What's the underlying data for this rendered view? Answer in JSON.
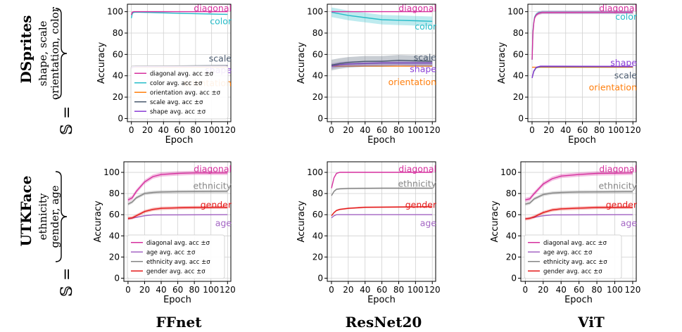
{
  "row_titles": [
    "DSprites",
    "UTKFace"
  ],
  "row_sets": [
    {
      "prefix": "𝕊 =",
      "line1": "shape, scale",
      "line2": "orientation, color"
    },
    {
      "prefix": "𝕊 =",
      "line1": "ethnicity",
      "line2": "gender, age"
    }
  ],
  "column_titles": [
    "FFnet",
    "ResNet20",
    "ViT"
  ],
  "colors": {
    "diagonal": "#d62f9e",
    "color": "#27bcc9",
    "orientation": "#ff7f0e",
    "scale": "#4a5a6e",
    "shape": "#8a3ed6",
    "age": "#a466c4",
    "ethnicity": "#858585",
    "gender": "#e41a1a"
  },
  "chart_data": [
    {
      "type": "line",
      "model": "FFnet",
      "dataset": "DSprites",
      "xlabel": "Epoch",
      "ylabel": "Accuracy",
      "xlim": [
        -5,
        124
      ],
      "ylim": [
        -3,
        107
      ],
      "xticks": [
        0,
        20,
        40,
        60,
        80,
        100,
        120
      ],
      "yticks": [
        0,
        20,
        40,
        60,
        80,
        100
      ],
      "grid": true,
      "legend_position": "lower-left",
      "legend": [
        "diagonal avg. acc ±σ",
        "color avg. acc ±σ",
        "orientation avg. acc ±σ",
        "scale avg. acc ±σ",
        "shape avg. acc ±σ"
      ],
      "series": [
        {
          "key": "orientation",
          "label": "orientation",
          "x": [
            0,
            120
          ],
          "y": [
            48,
            48
          ],
          "band": 0
        },
        {
          "key": "scale",
          "label": "scale",
          "x": [
            0,
            2,
            5,
            10,
            120
          ],
          "y": [
            47,
            48.5,
            49,
            49,
            49.5
          ],
          "band": 0.5
        },
        {
          "key": "shape",
          "label": "shape",
          "x": [
            0,
            2,
            5,
            10,
            120
          ],
          "y": [
            47,
            48,
            48.5,
            48.5,
            49
          ],
          "band": 0.5
        },
        {
          "key": "color",
          "label": "color",
          "x": [
            0,
            1,
            2,
            4,
            10,
            20,
            60,
            120
          ],
          "y": [
            94,
            98,
            99,
            99.5,
            99.5,
            99.3,
            98.5,
            97.5
          ],
          "band": 0.5
        },
        {
          "key": "diagonal",
          "label": "diagonal",
          "x": [
            0,
            1,
            3,
            120
          ],
          "y": [
            97,
            99.5,
            100,
            100
          ],
          "band": 0.3
        }
      ]
    },
    {
      "type": "line",
      "model": "ResNet20",
      "dataset": "DSprites",
      "xlabel": "Epoch",
      "ylabel": "Accuracy",
      "xlim": [
        -5,
        124
      ],
      "ylim": [
        -3,
        107
      ],
      "xticks": [
        0,
        20,
        40,
        60,
        80,
        100,
        120
      ],
      "yticks": [
        0,
        20,
        40,
        60,
        80,
        100
      ],
      "grid": true,
      "legend_position": "none",
      "series": [
        {
          "key": "orientation",
          "label": "orientation",
          "x": [
            0,
            120
          ],
          "y": [
            49,
            49
          ],
          "band": 0
        },
        {
          "key": "shape",
          "label": "shape",
          "x": [
            0,
            10,
            20,
            40,
            60,
            80,
            100,
            120
          ],
          "y": [
            49,
            50.5,
            51,
            51.5,
            52,
            52,
            52,
            52
          ],
          "band": 2.5
        },
        {
          "key": "scale",
          "label": "scale",
          "x": [
            0,
            10,
            20,
            40,
            60,
            80,
            100,
            120
          ],
          "y": [
            50,
            51.5,
            52.5,
            53.5,
            53.5,
            54.5,
            54,
            53.5
          ],
          "band": 5
        },
        {
          "key": "color",
          "label": "color",
          "x": [
            0,
            10,
            20,
            40,
            60,
            80,
            100,
            120
          ],
          "y": [
            99.5,
            98,
            96.5,
            94.5,
            92.5,
            92,
            91.5,
            91
          ],
          "band": 4.5
        },
        {
          "key": "diagonal",
          "label": "diagonal",
          "x": [
            0,
            120
          ],
          "y": [
            100,
            100
          ],
          "band": 0
        }
      ]
    },
    {
      "type": "line",
      "model": "ViT",
      "dataset": "DSprites",
      "xlabel": "Epoch",
      "ylabel": "Accuracy",
      "xlim": [
        -5,
        124
      ],
      "ylim": [
        -3,
        107
      ],
      "xticks": [
        0,
        20,
        40,
        60,
        80,
        100,
        120
      ],
      "yticks": [
        0,
        20,
        40,
        60,
        80,
        100
      ],
      "grid": true,
      "legend_position": "none",
      "series": [
        {
          "key": "orientation",
          "label": "orientation",
          "x": [
            0,
            120
          ],
          "y": [
            48,
            48
          ],
          "band": 0
        },
        {
          "key": "scale",
          "label": "scale",
          "x": [
            0,
            2,
            5,
            10,
            120
          ],
          "y": [
            38,
            44,
            47.5,
            48.5,
            48.5
          ],
          "band": 0.5
        },
        {
          "key": "shape",
          "label": "shape",
          "x": [
            0,
            2,
            5,
            10,
            120
          ],
          "y": [
            38,
            44.5,
            48,
            49,
            48.8
          ],
          "band": 0.5
        },
        {
          "key": "color",
          "label": "color",
          "x": [
            0,
            1,
            2,
            3,
            5,
            8,
            12,
            120
          ],
          "y": [
            55,
            82,
            90,
            95,
            97.5,
            99,
            99.5,
            99.5
          ],
          "band": 1.5
        },
        {
          "key": "diagonal",
          "label": "diagonal",
          "x": [
            0,
            1,
            2,
            3,
            5,
            8,
            12,
            120
          ],
          "y": [
            55,
            80,
            89,
            94,
            97,
            98.5,
            99.3,
            99.5
          ],
          "band": 1.5
        }
      ]
    },
    {
      "type": "line",
      "model": "FFnet",
      "dataset": "UTKFace",
      "xlabel": "Epoch",
      "ylabel": "Accuracy",
      "xlim": [
        -5,
        124
      ],
      "ylim": [
        -3,
        110
      ],
      "xticks": [
        0,
        20,
        40,
        60,
        80,
        100,
        120
      ],
      "yticks": [
        0,
        20,
        40,
        60,
        80,
        100
      ],
      "grid": true,
      "legend_position": "lower-left",
      "legend": [
        "diagonal avg. acc ±σ",
        "age avg. acc ±σ",
        "ethnicity avg. acc ±σ",
        "gender avg. acc ±σ"
      ],
      "series": [
        {
          "key": "age",
          "label": "age",
          "x": [
            0,
            10,
            20,
            30,
            120
          ],
          "y": [
            56,
            57.5,
            59,
            59.8,
            60
          ],
          "band": 0.5
        },
        {
          "key": "gender",
          "label": "gender",
          "x": [
            0,
            5,
            10,
            20,
            30,
            40,
            60,
            80,
            120
          ],
          "y": [
            56.5,
            57,
            59,
            63,
            65,
            66,
            66.5,
            66.8,
            67
          ],
          "band": 1.5
        },
        {
          "key": "ethnicity",
          "label": "ethnicity",
          "x": [
            0,
            5,
            10,
            20,
            30,
            40,
            60,
            120
          ],
          "y": [
            70,
            72,
            76,
            80,
            81,
            81.5,
            81.8,
            82
          ],
          "band": 1.5
        },
        {
          "key": "diagonal",
          "label": "diagonal",
          "x": [
            0,
            5,
            10,
            20,
            30,
            40,
            60,
            80,
            120
          ],
          "y": [
            74,
            76,
            82,
            91,
            96,
            98,
            99,
            99.5,
            99.5
          ],
          "band": 2
        }
      ]
    },
    {
      "type": "line",
      "model": "ResNet20",
      "dataset": "UTKFace",
      "xlabel": "Epoch",
      "ylabel": "Accuracy",
      "xlim": [
        -5,
        124
      ],
      "ylim": [
        -3,
        110
      ],
      "xticks": [
        0,
        20,
        40,
        60,
        80,
        100,
        120
      ],
      "yticks": [
        0,
        20,
        40,
        60,
        80,
        100
      ],
      "grid": true,
      "legend_position": "none",
      "series": [
        {
          "key": "age",
          "label": "age",
          "x": [
            0,
            3,
            6,
            10,
            120
          ],
          "y": [
            57,
            59,
            60,
            60,
            60
          ],
          "band": 0.3
        },
        {
          "key": "gender",
          "label": "gender",
          "x": [
            0,
            3,
            6,
            10,
            20,
            40,
            120
          ],
          "y": [
            59,
            62,
            64,
            65,
            66,
            67,
            67.5
          ],
          "band": 0.8
        },
        {
          "key": "ethnicity",
          "label": "ethnicity",
          "x": [
            0,
            3,
            6,
            10,
            20,
            60,
            120
          ],
          "y": [
            78,
            82,
            84,
            84.5,
            84.8,
            85,
            85
          ],
          "band": 0.8
        },
        {
          "key": "diagonal",
          "label": "diagonal",
          "x": [
            0,
            3,
            6,
            10,
            120
          ],
          "y": [
            85,
            95,
            99,
            100,
            100
          ],
          "band": 0.3
        }
      ]
    },
    {
      "type": "line",
      "model": "ViT",
      "dataset": "UTKFace",
      "xlabel": "Epoch",
      "ylabel": "Accuracy",
      "xlim": [
        -5,
        124
      ],
      "ylim": [
        -3,
        110
      ],
      "xticks": [
        0,
        20,
        40,
        60,
        80,
        100,
        120
      ],
      "yticks": [
        0,
        20,
        40,
        60,
        80,
        100
      ],
      "grid": true,
      "legend_position": "lower-left",
      "legend": [
        "diagonal avg. acc ±σ",
        "age avg. acc ±σ",
        "ethnicity avg. acc ±σ",
        "gender avg. acc ±σ"
      ],
      "series": [
        {
          "key": "age",
          "label": "age",
          "x": [
            0,
            10,
            20,
            30,
            120
          ],
          "y": [
            56,
            57.5,
            59,
            59.8,
            60
          ],
          "band": 0.5
        },
        {
          "key": "gender",
          "label": "gender",
          "x": [
            0,
            5,
            10,
            20,
            30,
            40,
            60,
            80,
            120
          ],
          "y": [
            56,
            56.5,
            58,
            62,
            64.5,
            65.5,
            66.2,
            66.8,
            67
          ],
          "band": 1.5
        },
        {
          "key": "ethnicity",
          "label": "ethnicity",
          "x": [
            0,
            5,
            10,
            20,
            30,
            40,
            60,
            120
          ],
          "y": [
            70,
            71,
            75,
            79,
            80.5,
            81,
            81.5,
            81.8
          ],
          "band": 1.5
        },
        {
          "key": "diagonal",
          "label": "diagonal",
          "x": [
            0,
            5,
            10,
            20,
            30,
            40,
            60,
            80,
            120
          ],
          "y": [
            74,
            75,
            80,
            89,
            94,
            96.5,
            98,
            99,
            99.5
          ],
          "band": 2
        }
      ]
    }
  ]
}
